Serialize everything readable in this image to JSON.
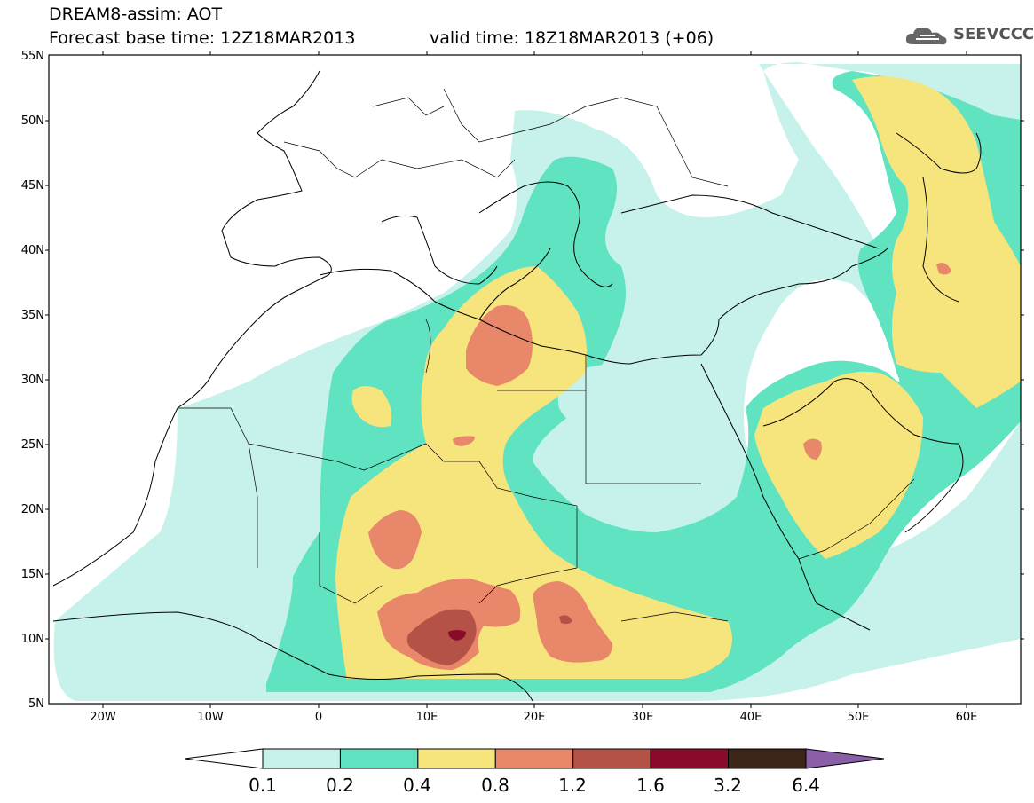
{
  "title": {
    "line1": "DREAM8-assim: AOT",
    "line2": "Forecast base time: 12Z18MAR2013",
    "line3": "valid time: 18Z18MAR2013 (+06)"
  },
  "logo": {
    "text": "SEEVCCC",
    "icon": "cloud-logo-icon"
  },
  "map": {
    "lon_range": [
      -25,
      65
    ],
    "lat_range": [
      5,
      55
    ],
    "x_ticks": [
      "20W",
      "10W",
      "0",
      "10E",
      "20E",
      "30E",
      "40E",
      "50E",
      "60E"
    ],
    "y_ticks": [
      "5N",
      "10N",
      "15N",
      "20N",
      "25N",
      "30N",
      "35N",
      "40N",
      "45N",
      "50N",
      "55N"
    ],
    "field": "AOT"
  },
  "colorbar": {
    "labels": [
      "0.1",
      "0.2",
      "0.4",
      "0.8",
      "1.2",
      "1.6",
      "3.2",
      "6.4"
    ],
    "colors": [
      "#c7f2ec",
      "#5fe3c0",
      "#f6e47c",
      "#e8876a",
      "#b55248",
      "#880c2a",
      "#3b2418",
      "#8a5fa8"
    ]
  }
}
